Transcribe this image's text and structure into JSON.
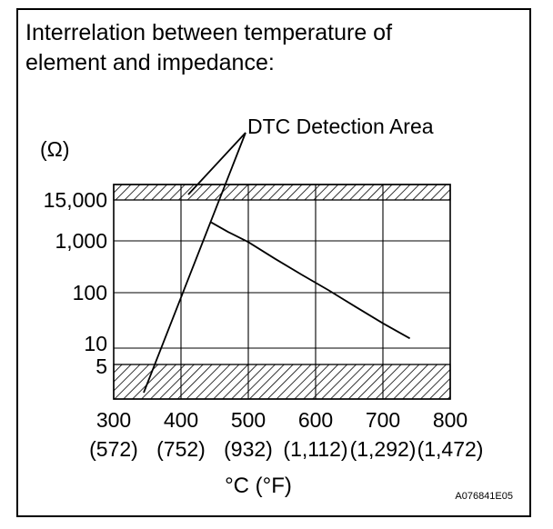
{
  "title_line1": "Interrelation between temperature of",
  "title_line2": "element and impedance:",
  "figure_id": "A076841E05",
  "chart_data": {
    "type": "line",
    "y_unit": "(Ω)",
    "y_scale": "log",
    "y_tick_labels": [
      "15,000",
      "1,000",
      "100",
      "10",
      "5"
    ],
    "x_tick_labels_c": [
      "300",
      "400",
      "500",
      "600",
      "700",
      "800"
    ],
    "x_tick_labels_f": [
      "(572)",
      "(752)",
      "(932)",
      "(1,112)",
      "(1,292)",
      "(1,472)"
    ],
    "xlabel": "°C (°F)",
    "xlim": [
      300,
      800
    ],
    "grid": true,
    "series": [
      {
        "x": [
          445,
          470,
          500,
          540,
          580,
          620,
          660,
          700,
          740
        ],
        "y": [
          3400,
          1800,
          950,
          450,
          220,
          110,
          55,
          28,
          15
        ]
      }
    ],
    "hatched_bands": [
      "above 15,000",
      "below 5"
    ],
    "annotation": "DTC Detection Area"
  }
}
